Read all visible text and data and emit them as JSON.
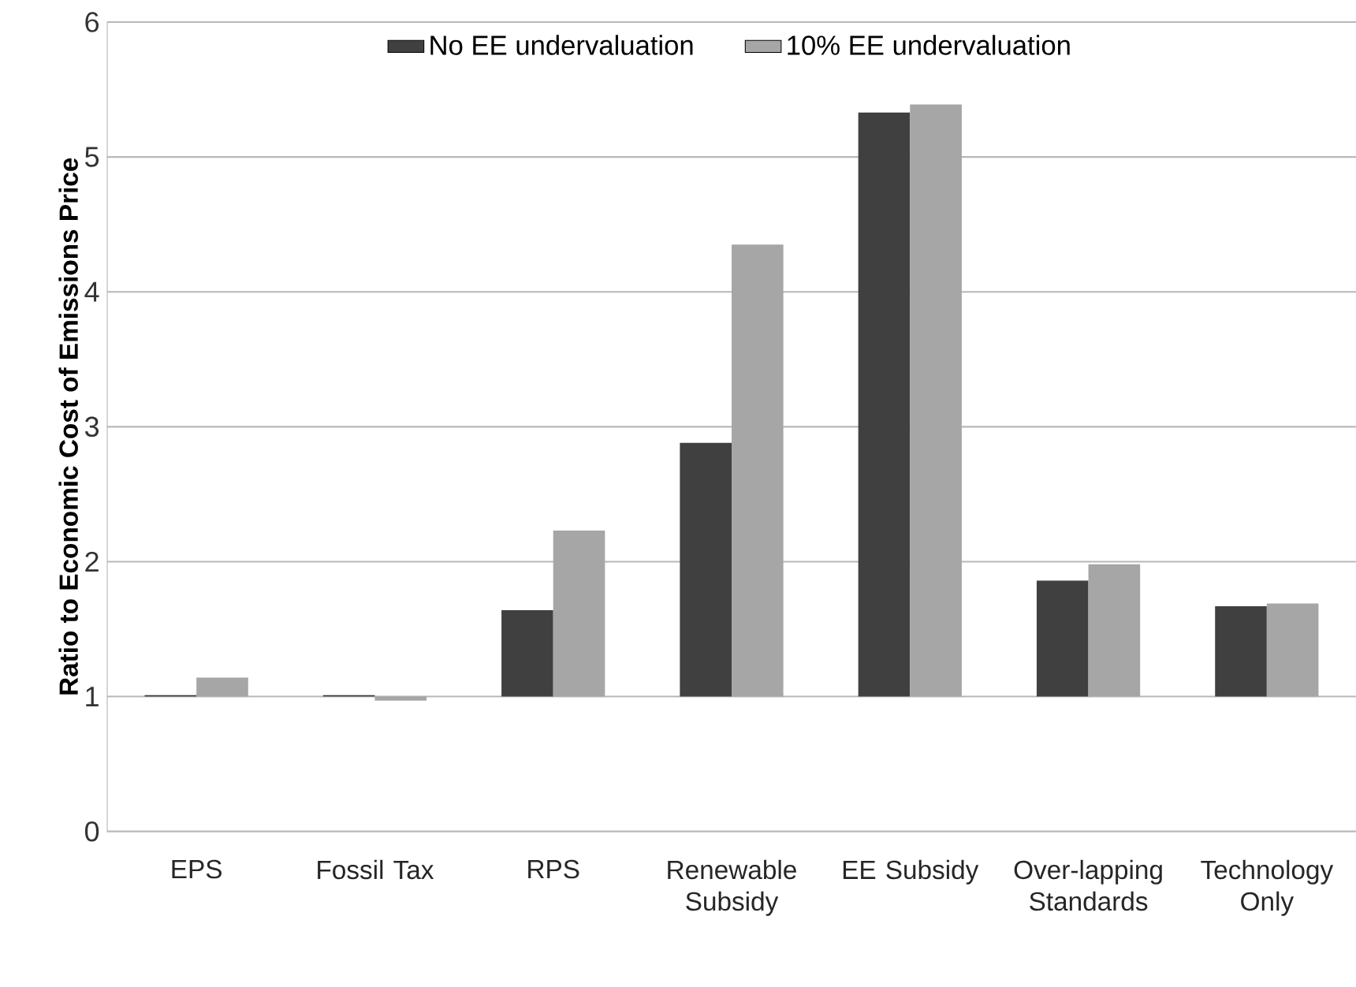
{
  "chart_data": {
    "type": "bar",
    "ylabel": "Ratio to Economic Cost of Emissions Price",
    "categories": [
      "EPS",
      "Fossil Tax",
      "RPS",
      "Renewable Subsidy",
      "EE Subsidy",
      "Over-lapping Standards",
      "Technology Only"
    ],
    "series": [
      {
        "name": "No EE undervaluation",
        "color": "#404040",
        "base": [
          1,
          1,
          1,
          1,
          1,
          1,
          1
        ],
        "values": [
          0.01,
          0.01,
          0.64,
          1.88,
          4.33,
          0.86,
          0.67
        ]
      },
      {
        "name": "10% EE undervaluation",
        "color": "#a6a6a6",
        "base": [
          1,
          1,
          1,
          1,
          1,
          1,
          1
        ],
        "values": [
          0.14,
          -0.03,
          1.23,
          3.35,
          4.39,
          0.98,
          0.69
        ]
      }
    ],
    "ylim": [
      0,
      6
    ],
    "yticks": [
      0,
      1,
      2,
      3,
      4,
      5,
      6
    ],
    "grid": "y",
    "legend": "top"
  }
}
